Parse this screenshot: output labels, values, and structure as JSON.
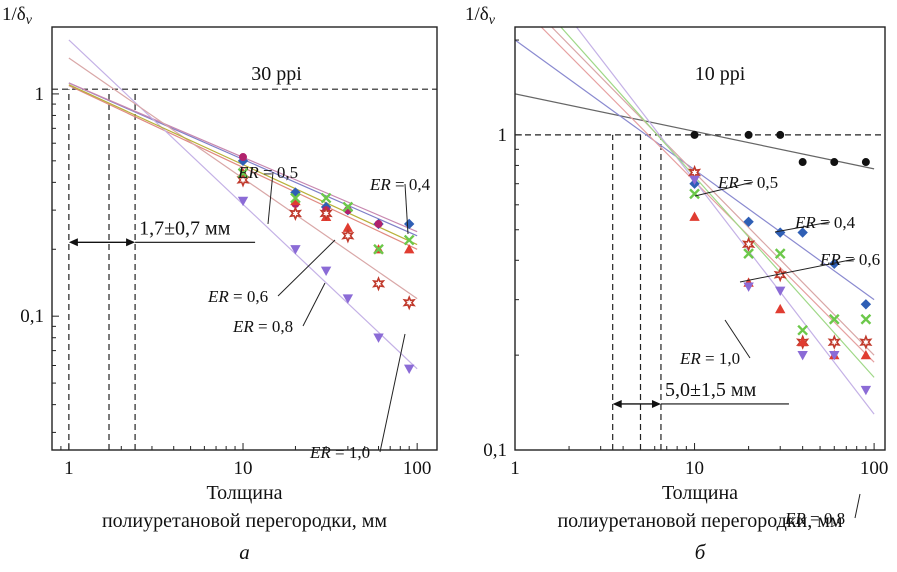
{
  "chart_data": [
    {
      "type": "scatter",
      "title": "30 ppi",
      "panel_label": "а",
      "xlabel_line1": "Толщина",
      "xlabel_line2": "полиуретановой перегородки, мм",
      "ylabel": "1/δ",
      "ylabel_sub": "v",
      "x_scale": "log",
      "y_scale": "log",
      "xlim": [
        0.8,
        130
      ],
      "ylim": [
        0.025,
        2.0
      ],
      "x_ticks": [
        {
          "v": 1,
          "label": "1"
        },
        {
          "v": 10,
          "label": "10"
        },
        {
          "v": 100,
          "label": "100"
        }
      ],
      "y_ticks": [
        {
          "v": 1,
          "label": "1"
        },
        {
          "v": 0.1,
          "label": "0,1"
        }
      ],
      "ref_lines": {
        "h": [
          1.05
        ],
        "v": [
          1.0,
          1.7,
          2.4
        ]
      },
      "range_annotation": {
        "text": "1,7±0,7 мм",
        "from": 1.0,
        "to": 2.4,
        "y": 0.215
      },
      "series": [
        {
          "label": "0,4",
          "color": "#2f5fb5",
          "marker": "diamond",
          "x": [
            10,
            20,
            30,
            40,
            60,
            90
          ],
          "y": [
            0.5,
            0.36,
            0.31,
            0.3,
            0.26,
            0.26
          ],
          "fit": {
            "x": [
              1,
              100
            ],
            "y": [
              1.12,
              0.23
            ],
            "color": "#7f7fc8"
          }
        },
        {
          "label": "0,5",
          "color": "#b1226d",
          "marker": "circle",
          "x": [
            10,
            20,
            30,
            40,
            60
          ],
          "y": [
            0.52,
            0.32,
            0.3,
            0.3,
            0.26
          ],
          "fit": {
            "x": [
              1,
              100
            ],
            "y": [
              1.12,
              0.24
            ],
            "color": "#c888b0"
          }
        },
        {
          "label": "0,6",
          "color": "#e03c31",
          "marker": "triangle",
          "x": [
            10,
            20,
            30,
            40,
            60,
            90
          ],
          "y": [
            0.44,
            0.33,
            0.28,
            0.25,
            0.2,
            0.2
          ],
          "fit": {
            "x": [
              1,
              100
            ],
            "y": [
              1.09,
              0.2
            ],
            "color": "#e08a82"
          }
        },
        {
          "label": "0,8",
          "color": "#8b6bd6",
          "marker": "triangle-down",
          "x": [
            10,
            20,
            30,
            40,
            60,
            90
          ],
          "y": [
            0.33,
            0.2,
            0.16,
            0.12,
            0.08,
            0.058
          ],
          "fit": {
            "x": [
              1,
              100
            ],
            "y": [
              1.75,
              0.058
            ],
            "color": "#c4b1e6"
          }
        },
        {
          "label": "1,0",
          "color": "#c0392b",
          "marker": "star",
          "x": [
            10,
            20,
            30,
            40,
            60,
            90
          ],
          "y": [
            0.41,
            0.29,
            0.29,
            0.23,
            0.14,
            0.115
          ],
          "fit": {
            "x": [
              1,
              100
            ],
            "y": [
              1.45,
              0.12
            ],
            "color": "#d9a7a7"
          }
        },
        {
          "label": "",
          "color": "#6cc84a",
          "marker": "cross",
          "x": [
            10,
            20,
            30,
            40,
            60,
            90
          ],
          "y": [
            0.44,
            0.34,
            0.34,
            0.31,
            0.2,
            0.22
          ],
          "fit": {
            "x": [
              1,
              100
            ],
            "y": [
              1.1,
              0.21
            ],
            "color": "#b9b13a"
          }
        }
      ],
      "annotations": [
        {
          "text": "ER = 0,5",
          "pos": [
            238,
            178
          ],
          "point": [
            268,
            224
          ]
        },
        {
          "text": "ER = 0,4",
          "pos": [
            370,
            190
          ],
          "point": [
            408,
            234
          ]
        },
        {
          "text": "ER = 0,6",
          "pos": [
            208,
            302
          ],
          "point": [
            335,
            240
          ]
        },
        {
          "text": "ER = 0,8",
          "pos": [
            233,
            332
          ],
          "point": [
            325,
            283
          ]
        },
        {
          "text": "ER = 1,0",
          "pos": [
            310,
            458
          ],
          "point": [
            405,
            334
          ]
        }
      ]
    },
    {
      "type": "scatter",
      "title": "10 ppi",
      "panel_label": "б",
      "xlabel_line1": "Толщина",
      "xlabel_line2": "полиуретановой перегородки, мм",
      "ylabel": "1/δ",
      "ylabel_sub": "v",
      "x_scale": "log",
      "y_scale": "log",
      "xlim": [
        1,
        115
      ],
      "ylim": [
        0.1,
        2.2
      ],
      "x_ticks": [
        {
          "v": 1,
          "label": "1"
        },
        {
          "v": 10,
          "label": "10"
        },
        {
          "v": 100,
          "label": "100"
        }
      ],
      "y_ticks": [
        {
          "v": 1,
          "label": "1"
        },
        {
          "v": 0.1,
          "label": "0,1"
        }
      ],
      "ref_lines": {
        "h": [
          1.0
        ],
        "v": [
          3.5,
          5.0,
          6.5
        ]
      },
      "range_annotation": {
        "text": "5,0±1,5 мм",
        "from": 3.5,
        "to": 6.5,
        "y": 0.14
      },
      "series": [
        {
          "label": "",
          "color": "#111111",
          "marker": "circle",
          "x": [
            10,
            20,
            30,
            40,
            60,
            90
          ],
          "y": [
            1.0,
            1.0,
            1.0,
            0.82,
            0.82,
            0.82
          ],
          "fit": {
            "x": [
              1,
              100
            ],
            "y": [
              1.35,
              0.78
            ],
            "color": "#666666"
          }
        },
        {
          "label": "0,4",
          "color": "#2f5fb5",
          "marker": "diamond",
          "x": [
            10,
            20,
            30,
            40,
            60,
            90
          ],
          "y": [
            0.7,
            0.53,
            0.49,
            0.49,
            0.39,
            0.29
          ],
          "fit": {
            "x": [
              1,
              100
            ],
            "y": [
              2.0,
              0.3
            ],
            "color": "#8a8ad0"
          }
        },
        {
          "label": "0,5",
          "color": "#c0392b",
          "marker": "star",
          "x": [
            10,
            20,
            30,
            40,
            60,
            90
          ],
          "y": [
            0.76,
            0.45,
            0.36,
            0.22,
            0.22,
            0.22
          ],
          "fit": {
            "x": [
              1.6,
              100
            ],
            "y": [
              2.2,
              0.2
            ],
            "color": "#d9a7a7"
          }
        },
        {
          "label": "0,6",
          "color": "#e03c31",
          "marker": "triangle",
          "x": [
            10,
            20,
            30,
            40,
            60,
            90
          ],
          "y": [
            0.55,
            0.34,
            0.28,
            0.22,
            0.2,
            0.2
          ],
          "fit": {
            "x": [
              1.4,
              100
            ],
            "y": [
              2.2,
              0.19
            ],
            "color": "#e6a0a0"
          }
        },
        {
          "label": "0,8",
          "color": "#8b6bd6",
          "marker": "triangle-down",
          "x": [
            10,
            20,
            30,
            40,
            60,
            90
          ],
          "y": [
            0.72,
            0.33,
            0.32,
            0.2,
            0.2,
            0.155
          ],
          "fit": {
            "x": [
              2.2,
              100
            ],
            "y": [
              2.2,
              0.13
            ],
            "color": "#c4b1e6"
          }
        },
        {
          "label": "1,0",
          "color": "#6cc84a",
          "marker": "cross",
          "x": [
            10,
            20,
            30,
            40,
            60,
            90
          ],
          "y": [
            0.65,
            0.42,
            0.42,
            0.24,
            0.26,
            0.26
          ],
          "fit": {
            "x": [
              1.8,
              100
            ],
            "y": [
              2.2,
              0.17
            ],
            "color": "#9fd887"
          }
        }
      ],
      "annotations": [
        {
          "text": "ER = 0,5",
          "pos": [
            718,
            188
          ],
          "point": [
            695,
            196
          ]
        },
        {
          "text": "ER = 0,4",
          "pos": [
            795,
            228
          ],
          "point": [
            775,
            232
          ]
        },
        {
          "text": "ER = 0,6",
          "pos": [
            820,
            265
          ],
          "point": [
            740,
            282
          ]
        },
        {
          "text": "ER = 1,0",
          "pos": [
            680,
            364
          ],
          "point": [
            725,
            320
          ]
        },
        {
          "text": "ER = 0,8",
          "pos": [
            785,
            524
          ],
          "point": [
            860,
            494
          ]
        }
      ]
    }
  ]
}
